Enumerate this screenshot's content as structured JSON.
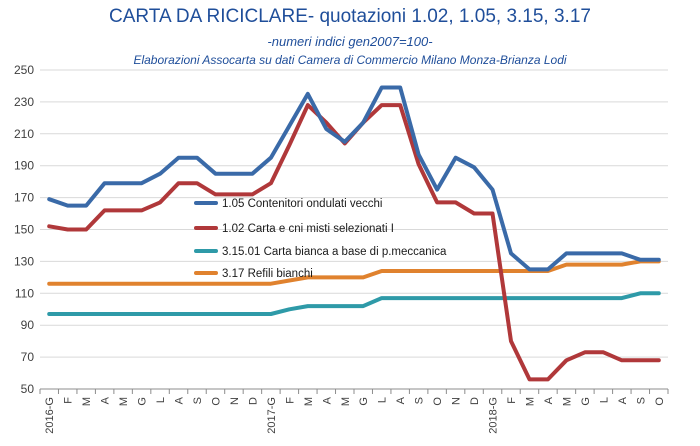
{
  "chart_data": {
    "type": "line",
    "title": "CARTA DA RICICLARE- quotazioni 1.02, 1.05, 3.15, 3.17",
    "subtitle": "-numeri indici gen2007=100-",
    "source": "Elaborazioni Assocarta su dati Camera di Commercio Milano Monza-Brianza Lodi",
    "ylim": [
      50,
      250
    ],
    "yticks": [
      50,
      70,
      90,
      110,
      130,
      150,
      170,
      190,
      210,
      230,
      250
    ],
    "grid": true,
    "x": [
      "2016-G",
      "F",
      "M",
      "A",
      "M",
      "G",
      "L",
      "A",
      "S",
      "O",
      "N",
      "D",
      "2017-G",
      "F",
      "M",
      "A",
      "M",
      "G",
      "L",
      "A",
      "S",
      "O",
      "N",
      "D",
      "2018-G",
      "F",
      "M",
      "A",
      "M",
      "G",
      "L",
      "A",
      "S",
      "O"
    ],
    "series": [
      {
        "name": "1.05  Contenitori ondulati vecchi",
        "color": "#3a6aa8",
        "values": [
          169,
          165,
          165,
          179,
          179,
          179,
          185,
          195,
          195,
          185,
          185,
          185,
          195,
          215,
          235,
          213,
          205,
          217,
          239,
          239,
          197,
          175,
          195,
          189,
          175,
          135,
          125,
          125,
          135,
          135,
          135,
          135,
          131,
          131
        ]
      },
      {
        "name": "1.02  Carta e cni misti selezionati I",
        "color": "#b0383a",
        "values": [
          152,
          150,
          150,
          162,
          162,
          162,
          167,
          179,
          179,
          172,
          172,
          172,
          179,
          203,
          228,
          217,
          204,
          217,
          228,
          228,
          191,
          167,
          167,
          160,
          160,
          80,
          56,
          56,
          68,
          73,
          73,
          68,
          68,
          68
        ]
      },
      {
        "name": "3.15.01 Carta bianca a base di p.meccanica",
        "color": "#2e9aa8",
        "values": [
          97,
          97,
          97,
          97,
          97,
          97,
          97,
          97,
          97,
          97,
          97,
          97,
          97,
          100,
          102,
          102,
          102,
          102,
          107,
          107,
          107,
          107,
          107,
          107,
          107,
          107,
          107,
          107,
          107,
          107,
          107,
          107,
          110,
          110
        ]
      },
      {
        "name": "3.17 Refili bianchi",
        "color": "#e0822e",
        "values": [
          116,
          116,
          116,
          116,
          116,
          116,
          116,
          116,
          116,
          116,
          116,
          116,
          116,
          118,
          120,
          120,
          120,
          120,
          124,
          124,
          124,
          124,
          124,
          124,
          124,
          124,
          124,
          124,
          128,
          128,
          128,
          128,
          130,
          130
        ]
      }
    ]
  }
}
